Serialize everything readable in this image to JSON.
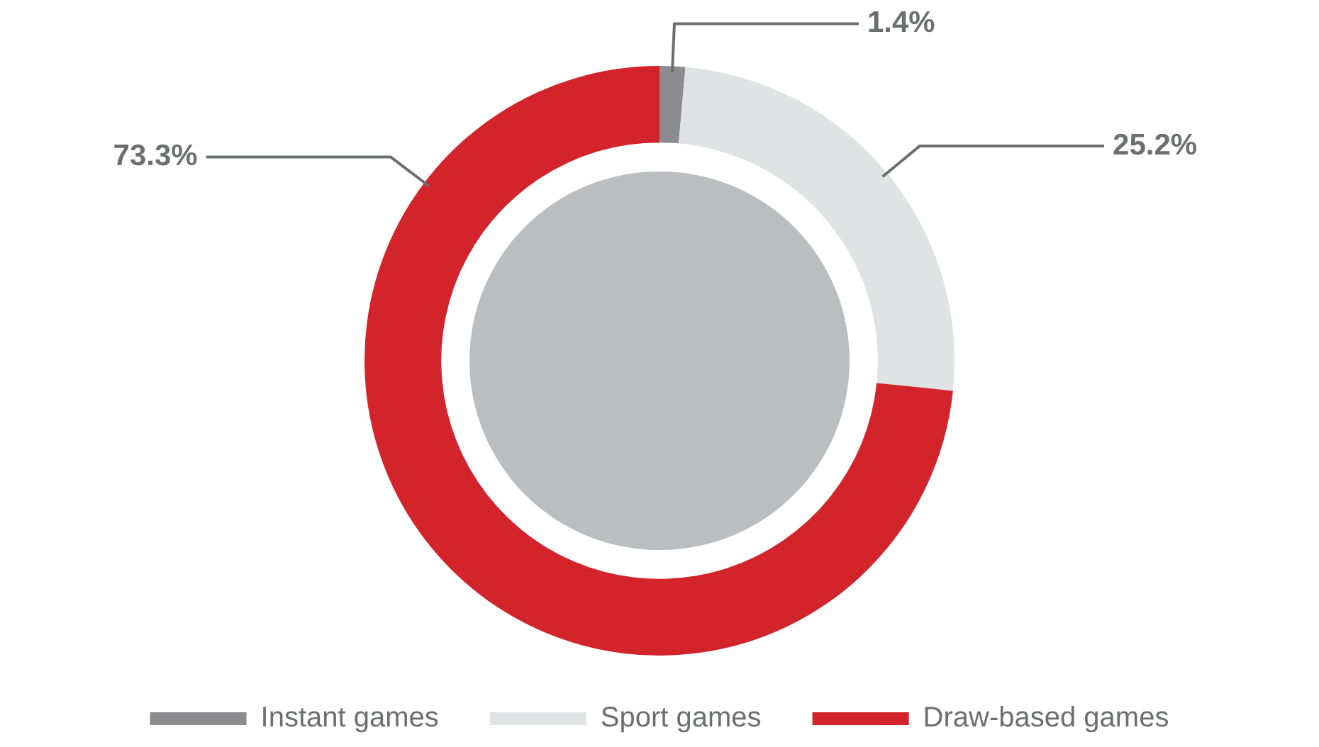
{
  "chart_data": {
    "type": "donut",
    "categories": [
      "Instant games",
      "Sport games",
      "Draw-based games"
    ],
    "values": [
      1.4,
      25.2,
      73.3
    ],
    "colors": [
      "#8c8c8e",
      "#e1e2e4",
      "#d3232b"
    ],
    "value_labels": [
      "1.4%",
      "25.2%",
      "73.3%"
    ],
    "legend": "bottom"
  }
}
